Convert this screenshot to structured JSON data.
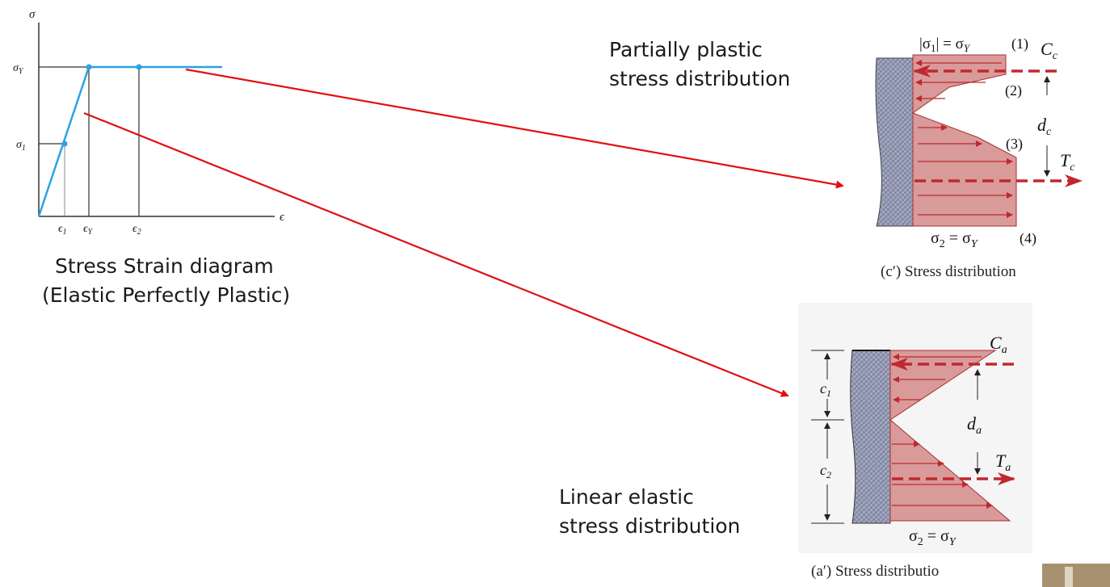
{
  "colors": {
    "curve": "#2aa3e0",
    "callout_arrow": "#e01010",
    "stress_fill": "#d99a9a",
    "stress_line": "#c0282e",
    "beam": "#8a8fa8",
    "axis": "#333333"
  },
  "ss_diagram": {
    "y_axis_label": "σ",
    "x_axis_label": "ϵ",
    "y_ticks": [
      "σ",
      "σ"
    ],
    "y_tick_subs": [
      "Y",
      "1"
    ],
    "x_ticks": [
      "ϵ",
      "ϵ",
      "ϵ"
    ],
    "x_tick_subs": [
      "1",
      "Y",
      "2"
    ],
    "caption_line1": "Stress Strain diagram",
    "caption_line2": "(Elastic Perfectly Plastic)"
  },
  "chart_data": {
    "type": "line",
    "title": "",
    "xlabel": "ϵ",
    "ylabel": "σ",
    "series": [
      {
        "x": [
          0,
          1,
          1.8,
          4.5
        ],
        "y": [
          0,
          0.5,
          1,
          1
        ]
      }
    ],
    "marked_points": [
      {
        "x": 1,
        "y": 0.5
      },
      {
        "x": 1.8,
        "y": 1
      },
      {
        "x": 3.6,
        "y": 1
      }
    ]
  },
  "plastic": {
    "title_line1": "Partially plastic",
    "title_line2": "stress distribution",
    "top_label": "|σ",
    "top_label_sub": "1",
    "top_label_rest": "| = σ",
    "top_label_sub2": "Y",
    "pt1": "(1)",
    "pt2": "(2)",
    "pt3": "(3)",
    "pt4": "(4)",
    "C": "C",
    "C_sub": "c",
    "T": "T",
    "T_sub": "c",
    "d": "d",
    "d_sub": "c",
    "bottom_label": "σ",
    "bottom_sub": "2",
    "bottom_rest": " = σ",
    "bottom_sub2": "Y",
    "caption": "(c′) Stress distribution"
  },
  "linear": {
    "title_line1": "Linear elastic",
    "title_line2": "stress distribution",
    "C": "C",
    "C_sub": "a",
    "T": "T",
    "T_sub": "a",
    "d": "d",
    "d_sub": "a",
    "c1": "c",
    "c1_sub": "1",
    "c2": "c",
    "c2_sub": "2",
    "bottom_label": "σ",
    "bottom_sub": "2",
    "bottom_rest": " = σ",
    "bottom_sub2": "Y",
    "caption": "(a′) Stress distributio"
  }
}
